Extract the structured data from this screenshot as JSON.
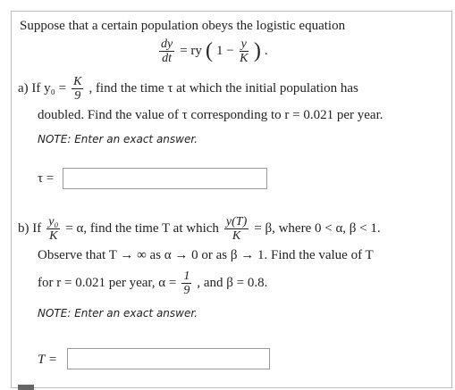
{
  "intro": "Suppose that a certain population obeys the logistic equation",
  "equation": {
    "lhs_num": "dy",
    "lhs_den": "dt",
    "rhs_start": "= ry",
    "paren_open": "(",
    "one_minus": "1 −",
    "frac_num": "y",
    "frac_den": "K",
    "paren_close": ")",
    "end": "."
  },
  "part_a": {
    "line1_start": "a) If y₀ =",
    "frac_num": "K",
    "frac_den": "9",
    "line1_end": ", find the time τ at which the initial population has",
    "line2": "doubled. Find the value of τ corresponding to r = 0.021 per year.",
    "note": "NOTE: Enter an exact answer.",
    "answer_label": "τ ="
  },
  "part_b": {
    "line1_start": "b) If",
    "frac1_num": "y₀",
    "frac1_den": "K",
    "line1_mid": "= α, find the time T at which",
    "frac2_num": "y(T)",
    "frac2_den": "K",
    "line1_end": "= β, where 0 < α, β < 1.",
    "line2": "Observe that T → ∞ as α → 0 or as β → 1. Find the value of T",
    "line3_start": "for r = 0.021 per year, α =",
    "frac3_num": "1",
    "frac3_den": "9",
    "line3_end": ", and β = 0.8.",
    "note": "NOTE: Enter an exact answer.",
    "answer_label": "T ="
  }
}
